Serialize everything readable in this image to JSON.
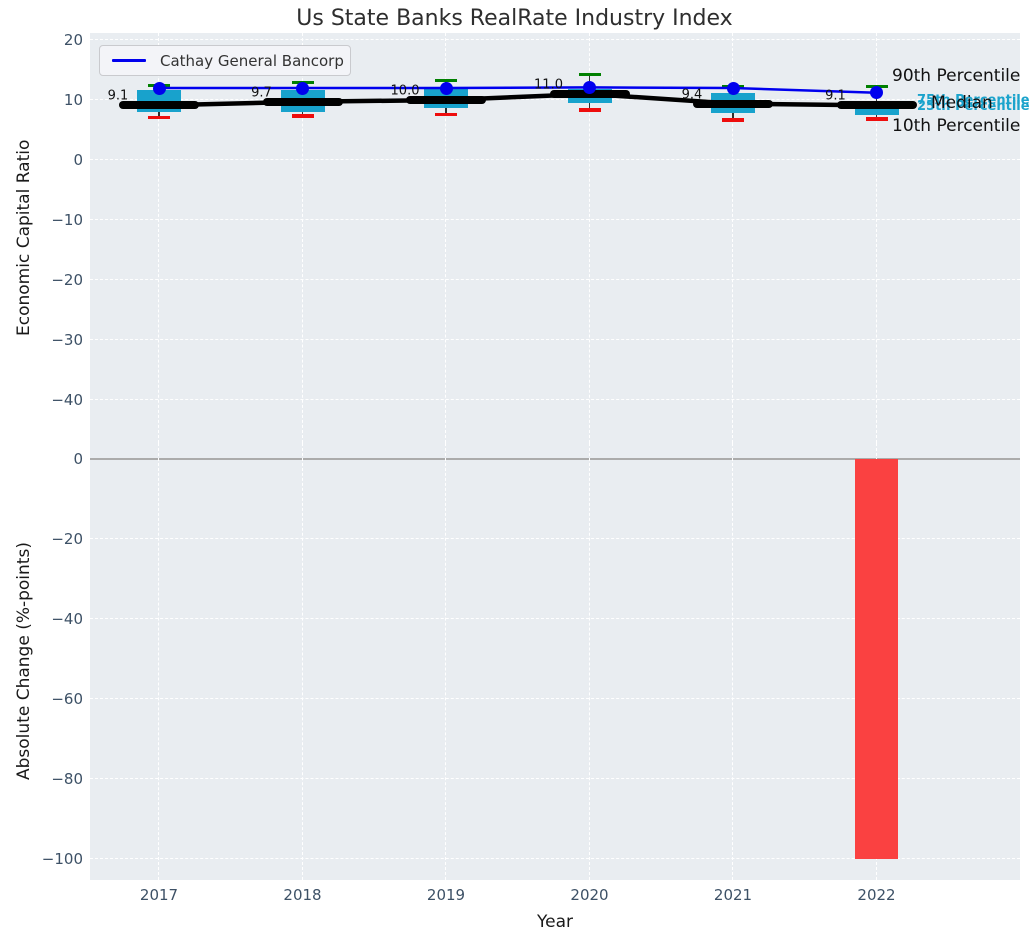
{
  "title": "Us State Banks RealRate Industry Index",
  "legend": {
    "label": "Cathay General Bancorp"
  },
  "annotations": {
    "p90": "90th Percentile",
    "p75": "75th Percentile",
    "median": "Median",
    "p25": "25th Percentile",
    "p10": "10th Percentile"
  },
  "colors": {
    "box_fill": "#18a2cc",
    "cap_high": "#008000",
    "cap_low": "#ee0d0d",
    "median_line": "#000000",
    "company_line": "#0000ee",
    "bar_negative": "#fa4141",
    "axes_bg": "#e9edf1",
    "grid": "#ffffff",
    "tick_text": "#3d5166",
    "cyan_text": "#1ba3cc"
  },
  "chart_data": [
    {
      "type": "boxplot",
      "title": "Us State Banks RealRate Industry Index",
      "ylabel": "Economic Capital Ratio",
      "categories": [
        "2017",
        "2018",
        "2019",
        "2020",
        "2021",
        "2022"
      ],
      "ylim": [
        -47,
        21
      ],
      "grid": true,
      "yticks": {
        "values": [
          20,
          10,
          0,
          -10,
          -20,
          -30,
          -40
        ],
        "labels": [
          "20",
          "10",
          "0",
          "−10",
          "−20",
          "−30",
          "−40"
        ]
      },
      "boxes": [
        {
          "year": "2017",
          "whislo": 7.2,
          "q1": 8.0,
          "med": 9.1,
          "q3": 11.7,
          "whishi": 12.4
        },
        {
          "year": "2018",
          "whislo": 7.5,
          "q1": 8.0,
          "med": 9.7,
          "q3": 11.7,
          "whishi": 13.0
        },
        {
          "year": "2019",
          "whislo": 7.7,
          "q1": 8.7,
          "med": 10.0,
          "q3": 12.0,
          "whishi": 13.3
        },
        {
          "year": "2020",
          "whislo": 8.5,
          "q1": 9.5,
          "med": 11.0,
          "q3": 11.8,
          "whishi": 14.3
        },
        {
          "year": "2021",
          "whislo": 6.8,
          "q1": 7.8,
          "med": 9.4,
          "q3": 11.2,
          "whishi": 12.2
        },
        {
          "year": "2022",
          "whislo": 7.0,
          "q1": 7.5,
          "med": 9.1,
          "q3": 9.5,
          "whishi": 12.2
        }
      ],
      "median_labels": [
        "9.1",
        "9.7",
        "10.0",
        "11.0",
        "9.4",
        "9.1"
      ],
      "series": [
        {
          "name": "Cathay General Bancorp",
          "values": [
            12.0,
            12.0,
            12.0,
            12.1,
            12.0,
            11.2
          ]
        }
      ],
      "legend_position": "upper left"
    },
    {
      "type": "bar",
      "ylabel": "Absolute Change (%-points)",
      "xlabel": "Year",
      "categories": [
        "2017",
        "2018",
        "2019",
        "2020",
        "2021",
        "2022"
      ],
      "values": [
        0,
        0,
        0,
        0,
        0,
        -100
      ],
      "ylim": [
        -105,
        4
      ],
      "grid": true,
      "yticks": {
        "values": [
          0,
          -20,
          -40,
          -60,
          -80,
          -100
        ],
        "labels": [
          "0",
          "−20",
          "−40",
          "−60",
          "−80",
          "−100"
        ]
      }
    }
  ]
}
